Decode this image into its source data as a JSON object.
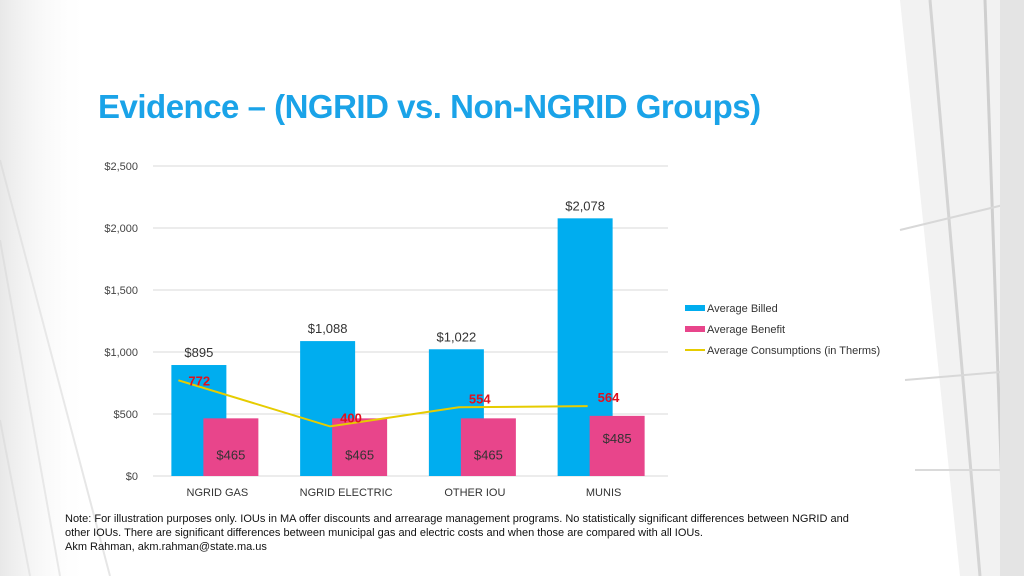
{
  "slide": {
    "title": "Evidence – (NGRID vs. Non-NGRID Groups)",
    "note_line1": "Note: For illustration purposes only.  IOUs in MA offer discounts and arrearage management programs.    No statistically significant differences between NGRID and",
    "note_line2": "other IOUs.  There are significant differences between municipal gas and electric costs and when those are compared with all IOUs.",
    "note_line3": "Akm Rahman, akm.rahman@state.ma.us"
  },
  "colors": {
    "title": "#1aa3e8",
    "billed": "#00adef",
    "benefit": "#e8458b",
    "consumption": "#e6cc00",
    "consumption_label": "#e0101e"
  },
  "chart_data": {
    "type": "bar",
    "categories": [
      "NGRID GAS",
      "NGRID ELECTRIC",
      "OTHER IOU",
      "MUNIS"
    ],
    "ylim": [
      0,
      2500
    ],
    "yticks": [
      "$0",
      "$500",
      "$1,000",
      "$1,500",
      "$2,000",
      "$2,500"
    ],
    "ytick_values": [
      0,
      500,
      1000,
      1500,
      2000,
      2500
    ],
    "legend_position": "right",
    "grid": true,
    "series": [
      {
        "name": "Average Billed",
        "kind": "bar",
        "values": [
          895,
          1088,
          1022,
          2078
        ],
        "labels": [
          "$895",
          "$1,088",
          "$1,022",
          "$2,078"
        ]
      },
      {
        "name": "Average Benefit",
        "kind": "bar",
        "values": [
          465,
          465,
          465,
          485
        ],
        "labels": [
          "$465",
          "$465",
          "$465",
          "$485"
        ]
      },
      {
        "name": "Average Consumptions (in Therms)",
        "kind": "line",
        "values": [
          772,
          400,
          554,
          564
        ],
        "labels": [
          "772",
          "400",
          "554",
          "564"
        ]
      }
    ]
  }
}
